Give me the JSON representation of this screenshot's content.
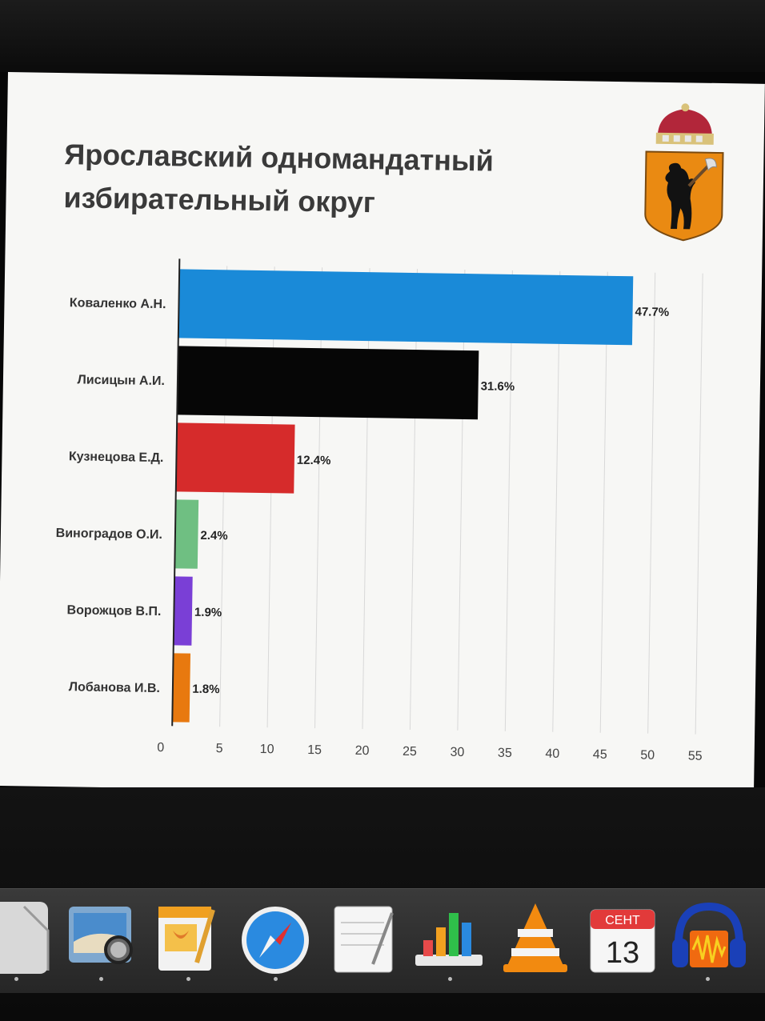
{
  "slide": {
    "title": "Ярославский одномандатный избирательный округ",
    "emblem_icon": "yaroslavl-coat-of-arms"
  },
  "chart_data": {
    "type": "bar",
    "orientation": "horizontal",
    "title": "",
    "xlabel": "",
    "ylabel": "",
    "categories": [
      "Коваленко А.Н.",
      "Лисицын А.И.",
      "Кузнецова Е.Д.",
      "Виноградов О.И.",
      "Ворожцов В.П.",
      "Лобанова И.В."
    ],
    "values": [
      47.7,
      31.6,
      12.4,
      2.4,
      1.9,
      1.8
    ],
    "data_labels": [
      "47.7%",
      "31.6%",
      "12.4%",
      "2.4%",
      "1.9%",
      "1.8%"
    ],
    "colors": [
      "#1a8ad8",
      "#060606",
      "#d62b2b",
      "#6fbf82",
      "#7a3fd6",
      "#e8790f"
    ],
    "xlim": [
      0,
      55
    ],
    "xticks": [
      0,
      5,
      10,
      15,
      20,
      25,
      30,
      35,
      40,
      45,
      50,
      55
    ],
    "grid": true,
    "legend": "none"
  },
  "dock": {
    "items": [
      {
        "name": "finder-partial-icon"
      },
      {
        "name": "preview-icon"
      },
      {
        "name": "pages-icon"
      },
      {
        "name": "safari-icon"
      },
      {
        "name": "textedit-icon"
      },
      {
        "name": "numbers-icon"
      },
      {
        "name": "vlc-icon"
      },
      {
        "name": "calendar-icon",
        "month": "СЕНТ",
        "day": "13"
      },
      {
        "name": "audacity-icon"
      }
    ]
  }
}
